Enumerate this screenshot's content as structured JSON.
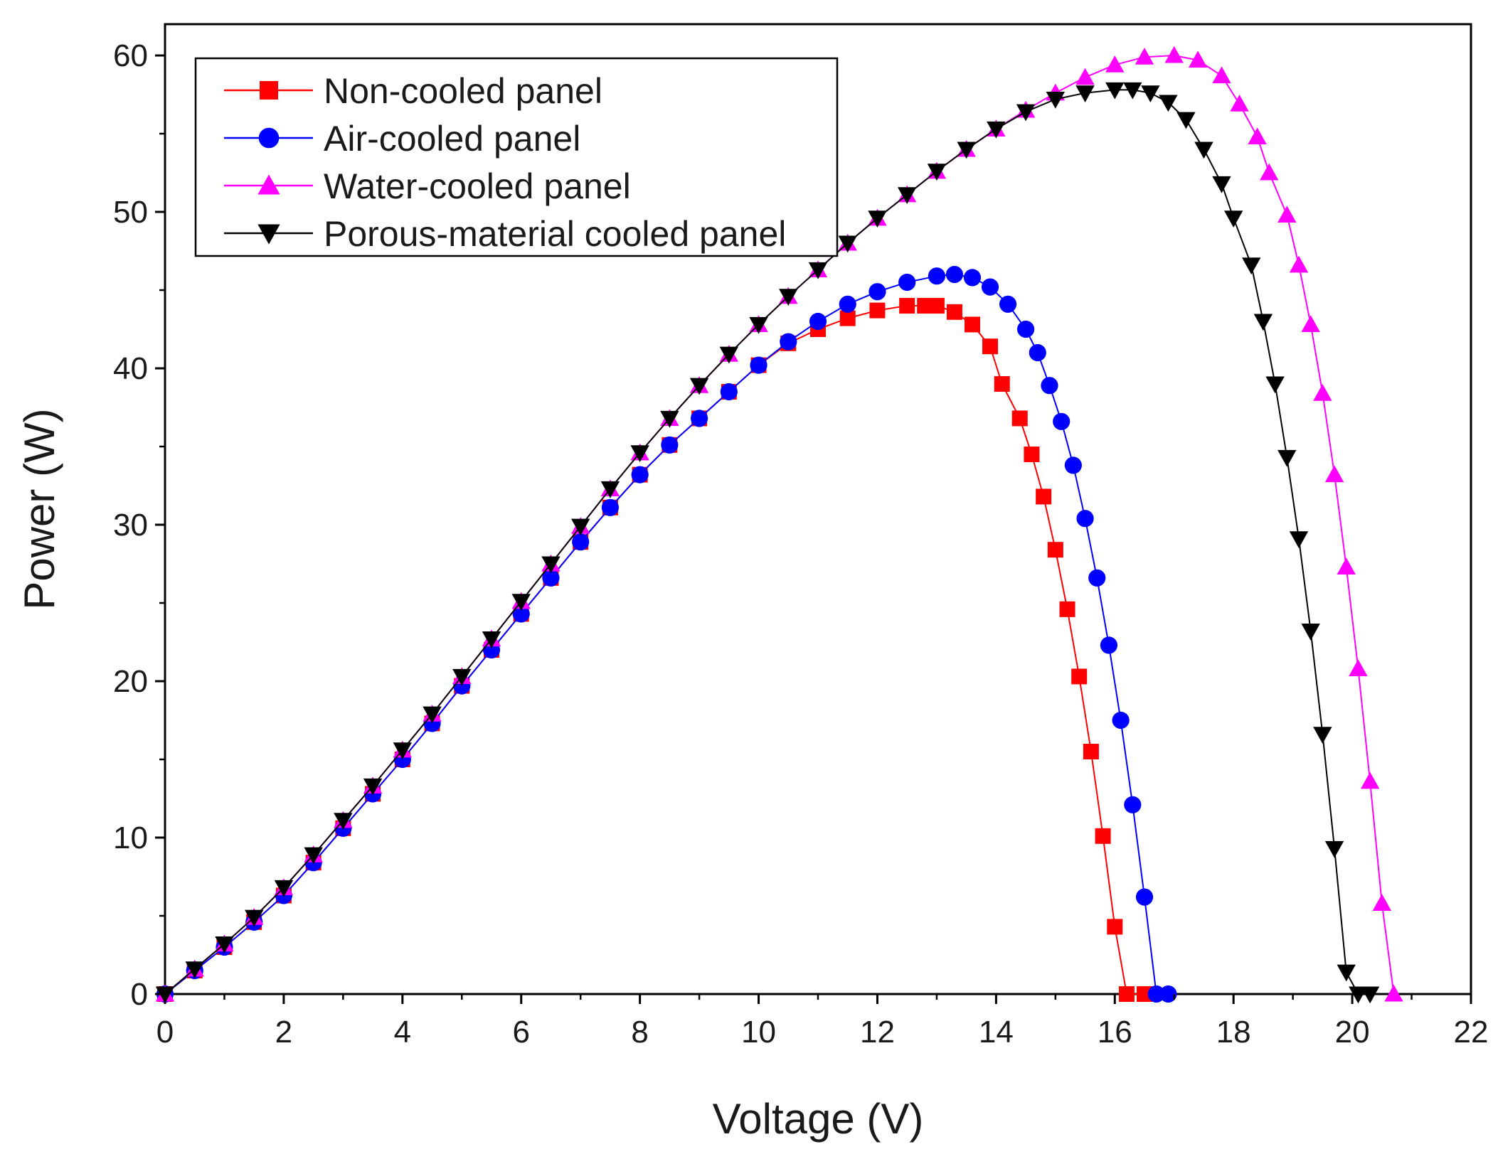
{
  "chart_data": {
    "type": "line",
    "title": "",
    "xlabel": "Voltage (V)",
    "ylabel": "Power (W)",
    "xlim": [
      0,
      22
    ],
    "ylim": [
      0,
      62
    ],
    "xticks": [
      0,
      2,
      4,
      6,
      8,
      10,
      12,
      14,
      16,
      18,
      20,
      22
    ],
    "yticks": [
      0,
      10,
      20,
      30,
      40,
      50,
      60
    ],
    "xtick_labels": [
      "0",
      "2",
      "4",
      "6",
      "8",
      "10",
      "12",
      "14",
      "16",
      "18",
      "20",
      "22"
    ],
    "ytick_labels": [
      "0",
      "10",
      "20",
      "30",
      "40",
      "50",
      "60"
    ],
    "grid": false,
    "legend_position": "top-left",
    "series": [
      {
        "name": "Non-cooled panel",
        "color": "#ff0000",
        "marker": "square",
        "x": [
          0.0,
          0.5,
          1.0,
          1.5,
          2.0,
          2.5,
          3.0,
          3.5,
          4.0,
          4.5,
          5.0,
          5.5,
          6.0,
          6.5,
          7.0,
          7.5,
          8.0,
          8.5,
          9.0,
          9.5,
          10.0,
          10.5,
          11.0,
          11.5,
          12.0,
          12.5,
          12.8,
          13.0,
          13.3,
          13.6,
          13.9,
          14.1,
          14.4,
          14.6,
          14.8,
          15.0,
          15.2,
          15.4,
          15.6,
          15.8,
          16.0,
          16.2,
          16.5
        ],
        "y": [
          0.0,
          1.5,
          3.0,
          4.6,
          6.3,
          8.4,
          10.6,
          12.8,
          15.0,
          17.3,
          19.7,
          22.0,
          24.3,
          26.6,
          28.9,
          31.1,
          33.2,
          35.1,
          36.8,
          38.5,
          40.2,
          41.6,
          42.5,
          43.2,
          43.7,
          44.0,
          44.0,
          44.0,
          43.6,
          42.8,
          41.4,
          39.0,
          36.8,
          34.5,
          31.8,
          28.4,
          24.6,
          20.3,
          15.5,
          10.1,
          4.3,
          0.0,
          0.0
        ]
      },
      {
        "name": "Air-cooled panel",
        "color": "#0000ff",
        "marker": "circle",
        "x": [
          0.0,
          0.5,
          1.0,
          1.5,
          2.0,
          2.5,
          3.0,
          3.5,
          4.0,
          4.5,
          5.0,
          5.5,
          6.0,
          6.5,
          7.0,
          7.5,
          8.0,
          8.5,
          9.0,
          9.5,
          10.0,
          10.5,
          11.0,
          11.5,
          12.0,
          12.5,
          13.0,
          13.3,
          13.6,
          13.9,
          14.2,
          14.5,
          14.7,
          14.9,
          15.1,
          15.3,
          15.5,
          15.7,
          15.9,
          16.1,
          16.3,
          16.5,
          16.7,
          16.9
        ],
        "y": [
          0.0,
          1.5,
          3.0,
          4.6,
          6.3,
          8.4,
          10.6,
          12.8,
          15.0,
          17.3,
          19.7,
          22.0,
          24.3,
          26.6,
          28.9,
          31.1,
          33.2,
          35.1,
          36.8,
          38.5,
          40.2,
          41.7,
          43.0,
          44.1,
          44.9,
          45.5,
          45.9,
          46.0,
          45.8,
          45.2,
          44.1,
          42.5,
          41.0,
          38.9,
          36.6,
          33.8,
          30.4,
          26.6,
          22.3,
          17.5,
          12.1,
          6.2,
          0.0,
          0.0
        ]
      },
      {
        "name": "Water-cooled panel",
        "color": "#ff00ff",
        "marker": "triangle-up",
        "x": [
          0.0,
          0.5,
          1.0,
          1.5,
          2.0,
          2.5,
          3.0,
          3.5,
          4.0,
          4.5,
          5.0,
          5.5,
          6.0,
          6.5,
          7.0,
          7.5,
          8.0,
          8.5,
          9.0,
          9.5,
          10.0,
          10.5,
          11.0,
          11.5,
          12.0,
          12.5,
          13.0,
          13.5,
          14.0,
          14.5,
          15.0,
          15.5,
          16.0,
          16.5,
          17.0,
          17.4,
          17.8,
          18.1,
          18.4,
          18.6,
          18.9,
          19.1,
          19.3,
          19.5,
          19.7,
          19.9,
          20.1,
          20.3,
          20.5,
          20.7
        ],
        "y": [
          0.0,
          1.6,
          3.2,
          4.9,
          6.8,
          8.9,
          11.1,
          13.3,
          15.6,
          17.9,
          20.3,
          22.7,
          25.1,
          27.5,
          29.9,
          32.3,
          34.6,
          36.8,
          38.9,
          40.9,
          42.8,
          44.6,
          46.3,
          48.0,
          49.6,
          51.1,
          52.6,
          54.0,
          55.3,
          56.5,
          57.6,
          58.6,
          59.4,
          59.9,
          60.0,
          59.7,
          58.7,
          56.9,
          54.8,
          52.5,
          49.8,
          46.6,
          42.8,
          38.4,
          33.2,
          27.3,
          20.8,
          13.6,
          5.8,
          0.0
        ]
      },
      {
        "name": "Porous-material cooled panel",
        "color": "#000000",
        "marker": "triangle-down",
        "x": [
          0.0,
          0.5,
          1.0,
          1.5,
          2.0,
          2.5,
          3.0,
          3.5,
          4.0,
          4.5,
          5.0,
          5.5,
          6.0,
          6.5,
          7.0,
          7.5,
          8.0,
          8.5,
          9.0,
          9.5,
          10.0,
          10.5,
          11.0,
          11.5,
          12.0,
          12.5,
          13.0,
          13.5,
          14.0,
          14.5,
          15.0,
          15.5,
          16.0,
          16.3,
          16.6,
          16.9,
          17.2,
          17.5,
          17.8,
          18.0,
          18.3,
          18.5,
          18.7,
          18.9,
          19.1,
          19.3,
          19.5,
          19.7,
          19.9,
          20.1,
          20.3
        ],
        "y": [
          0.0,
          1.6,
          3.2,
          4.9,
          6.8,
          8.9,
          11.1,
          13.3,
          15.6,
          17.9,
          20.3,
          22.7,
          25.1,
          27.5,
          29.9,
          32.3,
          34.6,
          36.8,
          38.9,
          40.9,
          42.8,
          44.6,
          46.3,
          48.0,
          49.6,
          51.1,
          52.6,
          54.0,
          55.3,
          56.4,
          57.2,
          57.6,
          57.8,
          57.8,
          57.6,
          57.0,
          55.9,
          54.0,
          51.8,
          49.6,
          46.6,
          43.0,
          39.0,
          34.3,
          29.1,
          23.2,
          16.6,
          9.3,
          1.4,
          0.0,
          0.0
        ]
      }
    ]
  }
}
